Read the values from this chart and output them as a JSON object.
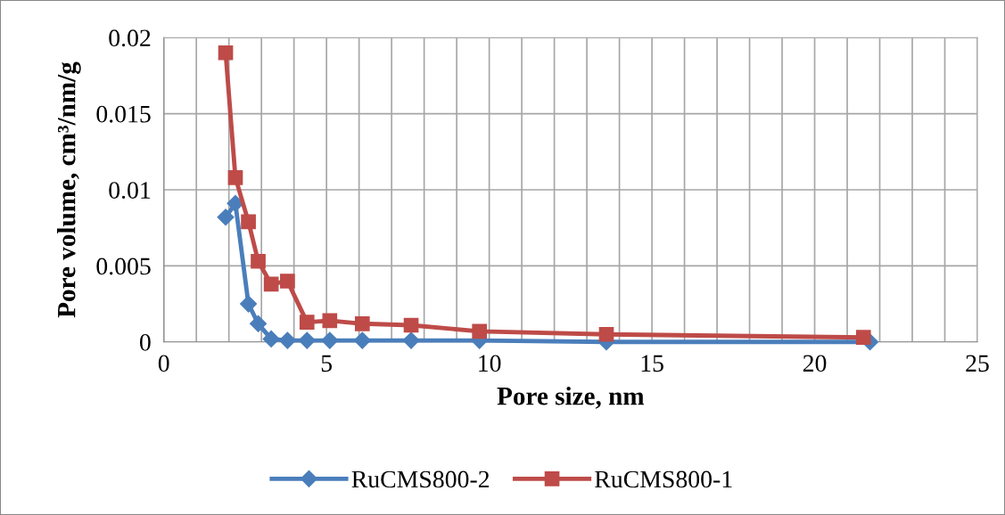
{
  "chart_data": {
    "type": "line",
    "xlabel": "Pore size, nm",
    "ylabel": "Pore volume, cm³/nm/g",
    "xlim": [
      0,
      25
    ],
    "ylim": [
      0,
      0.02
    ],
    "xticks": [
      0,
      {
        "value": 1,
        "label": null
      },
      {
        "value": 2,
        "label": null
      },
      {
        "value": 3,
        "label": null
      },
      {
        "value": 4,
        "label": null
      },
      5,
      {
        "value": 6,
        "label": null
      },
      {
        "value": 7,
        "label": null
      },
      {
        "value": 8,
        "label": null
      },
      {
        "value": 9,
        "label": null
      },
      10,
      {
        "value": 11,
        "label": null
      },
      {
        "value": 12,
        "label": null
      },
      {
        "value": 13,
        "label": null
      },
      {
        "value": 14,
        "label": null
      },
      15,
      {
        "value": 16,
        "label": null
      },
      {
        "value": 17,
        "label": null
      },
      {
        "value": 18,
        "label": null
      },
      {
        "value": 19,
        "label": null
      },
      20,
      {
        "value": 21,
        "label": null
      },
      {
        "value": 22,
        "label": null
      },
      {
        "value": 23,
        "label": null
      },
      {
        "value": 24,
        "label": null
      },
      25
    ],
    "yticks": [
      0,
      0.005,
      0.01,
      0.015,
      0.02
    ],
    "grid": true,
    "legend": "bottom",
    "series": [
      {
        "name": "RuCMS800-2",
        "color": "#4a7ebb",
        "marker": "diamond",
        "x": [
          1.9,
          2.2,
          2.6,
          2.9,
          3.3,
          3.8,
          4.4,
          5.1,
          6.1,
          7.6,
          9.7,
          13.6,
          21.7
        ],
        "values": [
          0.0082,
          0.0091,
          0.0025,
          0.0012,
          0.0002,
          0.0001,
          0.0001,
          0.0001,
          0.0001,
          0.0001,
          0.0001,
          0,
          0
        ]
      },
      {
        "name": "RuCMS800-1",
        "color": "#be4b48",
        "marker": "square",
        "x": [
          1.9,
          2.2,
          2.6,
          2.9,
          3.3,
          3.8,
          4.4,
          5.1,
          6.1,
          7.6,
          9.7,
          13.6,
          21.5
        ],
        "values": [
          0.019,
          0.0108,
          0.0079,
          0.0053,
          0.0038,
          0.004,
          0.0013,
          0.0014,
          0.0012,
          0.0011,
          0.0007,
          0.0005,
          0.0003
        ]
      }
    ]
  }
}
